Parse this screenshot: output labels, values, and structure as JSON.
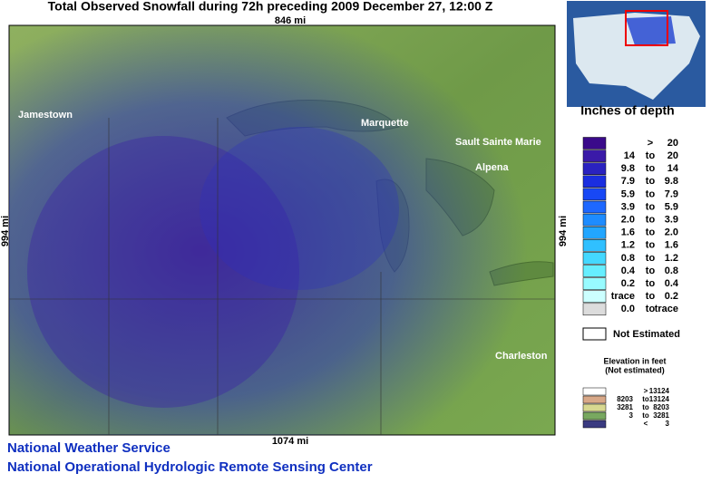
{
  "header": {
    "title": "Total Observed Snowfall during 72h preceding 2009 December 27, 12:00 Z"
  },
  "map": {
    "top_scale": "846 mi",
    "bottom_scale": "1074 mi",
    "left_scale": "994 mi",
    "right_scale": "994 mi",
    "cities": [
      "Jamestown",
      "Marquette",
      "Sault Sainte Marie",
      "Alpena",
      "Charleston"
    ]
  },
  "legend": {
    "title": "Inches of depth",
    "rows": [
      {
        "color": "#3a0a8a",
        "sep": ">",
        "high": "20"
      },
      {
        "color": "#3a1aa8",
        "low": "14",
        "sep": "to",
        "high": "20"
      },
      {
        "color": "#2a22c0",
        "low": "9.8",
        "sep": "to",
        "high": "14"
      },
      {
        "color": "#1a2ee0",
        "low": "7.9",
        "sep": "to",
        "high": "9.8"
      },
      {
        "color": "#1848f5",
        "low": "5.9",
        "sep": "to",
        "high": "7.9"
      },
      {
        "color": "#1e68ff",
        "low": "3.9",
        "sep": "to",
        "high": "5.9"
      },
      {
        "color": "#1e8cff",
        "low": "2.0",
        "sep": "to",
        "high": "3.9"
      },
      {
        "color": "#22a6ff",
        "low": "1.6",
        "sep": "to",
        "high": "2.0"
      },
      {
        "color": "#30c0ff",
        "low": "1.2",
        "sep": "to",
        "high": "1.6"
      },
      {
        "color": "#44d8ff",
        "low": "0.8",
        "sep": "to",
        "high": "1.2"
      },
      {
        "color": "#66eeff",
        "low": "0.4",
        "sep": "to",
        "high": "0.8"
      },
      {
        "color": "#98fbff",
        "low": "0.2",
        "sep": "to",
        "high": "0.4"
      },
      {
        "color": "#ccffff",
        "low": "trace",
        "sep": "to",
        "high": "0.2"
      },
      {
        "color": "#dcdcdc",
        "low": "0.0",
        "sep": "to",
        "high": "trace"
      }
    ],
    "not_estimated": "Not Estimated"
  },
  "elevation": {
    "title": [
      "Elevation in feet",
      "(Not estimated)"
    ],
    "rows": [
      {
        "color": "#ffffff",
        "sep": ">",
        "high": "13124"
      },
      {
        "color": "#d8a888",
        "low": "8203",
        "sep": "to",
        "high": "13124"
      },
      {
        "color": "#d8d890",
        "low": "3281",
        "sep": "to",
        "high": "8203"
      },
      {
        "color": "#78a860",
        "low": "3",
        "sep": "to",
        "high": "3281"
      },
      {
        "color": "#3a3a80",
        "sep": "<",
        "high": "3"
      }
    ]
  },
  "footer": {
    "line1": "National Weather Service",
    "line2": "National Operational Hydrologic Remote Sensing Center"
  }
}
